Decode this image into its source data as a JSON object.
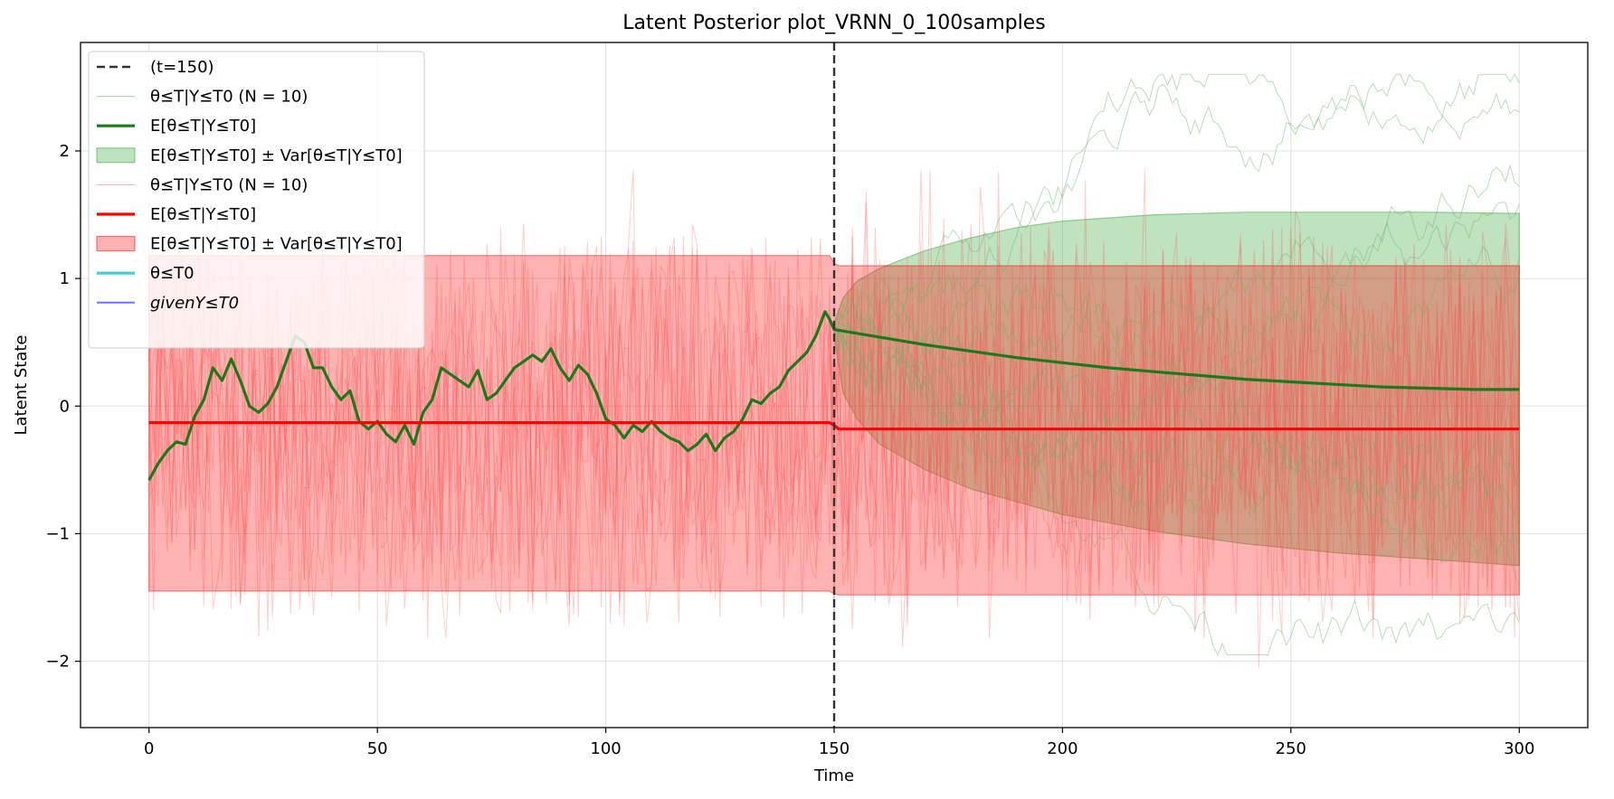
{
  "chart_data": {
    "type": "line",
    "title": "Latent Posterior plot_VRNN_0_100samples",
    "xlabel": "Time",
    "ylabel": "Latent State",
    "xlim": [
      -15,
      315
    ],
    "ylim": [
      -2.52,
      2.85
    ],
    "xticks": [
      0,
      50,
      100,
      150,
      200,
      250,
      300
    ],
    "yticks": [
      -2,
      -1,
      0,
      1,
      2
    ],
    "grid": true,
    "legend_position": "top-left",
    "vline": {
      "x": 150,
      "label": "(t=150)",
      "color": "#333333"
    },
    "legend": [
      {
        "label": "(t=150)",
        "style": "dashed",
        "color": "#333333"
      },
      {
        "label": "θ≤T|Y≤T0 (N = 10)",
        "style": "thin",
        "color": "#7bc47b"
      },
      {
        "label": "E[θ≤T|Y≤T0]",
        "style": "thick",
        "color": "#1a7a1a"
      },
      {
        "label": "E[θ≤T|Y≤T0] ± Var[θ≤T|Y≤T0]",
        "style": "patch",
        "color": "#2ca02c"
      },
      {
        "label": "θ≤T|Y≤T0 (N = 10)",
        "style": "thin",
        "color": "#ff8080"
      },
      {
        "label": "E[θ≤T|Y≤T0]",
        "style": "thick",
        "color": "#ff0000"
      },
      {
        "label": "E[θ≤T|Y≤T0] ± Var[θ≤T|Y≤T0]",
        "style": "patch",
        "color": "#ff0000"
      },
      {
        "label": "θ≤T0",
        "style": "thick",
        "color": "#40d0d0"
      },
      {
        "label": "givenY≤T0",
        "style": "medium",
        "color": "#7070ff"
      }
    ],
    "series": [
      {
        "name": "green mean E[θ≤T|Y≤T0]",
        "x": [
          0,
          2,
          4,
          6,
          8,
          10,
          12,
          14,
          16,
          18,
          20,
          22,
          24,
          26,
          28,
          30,
          32,
          34,
          36,
          38,
          40,
          42,
          44,
          46,
          48,
          50,
          52,
          54,
          56,
          58,
          60,
          62,
          64,
          66,
          68,
          70,
          72,
          74,
          76,
          78,
          80,
          82,
          84,
          86,
          88,
          90,
          92,
          94,
          96,
          98,
          100,
          102,
          104,
          106,
          108,
          110,
          112,
          114,
          116,
          118,
          120,
          122,
          124,
          126,
          128,
          130,
          132,
          134,
          136,
          138,
          140,
          142,
          144,
          146,
          148,
          149,
          150,
          160,
          170,
          180,
          190,
          200,
          210,
          220,
          230,
          240,
          250,
          260,
          270,
          280,
          290,
          300
        ],
        "values": [
          -0.58,
          -0.45,
          -0.35,
          -0.28,
          -0.3,
          -0.08,
          0.05,
          0.3,
          0.2,
          0.37,
          0.2,
          0.0,
          -0.05,
          0.02,
          0.15,
          0.35,
          0.55,
          0.5,
          0.3,
          0.3,
          0.15,
          0.05,
          0.12,
          -0.12,
          -0.18,
          -0.12,
          -0.22,
          -0.28,
          -0.15,
          -0.3,
          -0.05,
          0.05,
          0.3,
          0.25,
          0.2,
          0.15,
          0.28,
          0.05,
          0.1,
          0.2,
          0.3,
          0.35,
          0.4,
          0.35,
          0.45,
          0.3,
          0.2,
          0.32,
          0.25,
          0.1,
          -0.1,
          -0.15,
          -0.25,
          -0.15,
          -0.2,
          -0.12,
          -0.2,
          -0.25,
          -0.28,
          -0.35,
          -0.3,
          -0.22,
          -0.35,
          -0.25,
          -0.2,
          -0.1,
          0.05,
          0.02,
          0.1,
          0.15,
          0.28,
          0.35,
          0.42,
          0.55,
          0.74,
          0.68,
          0.6,
          0.54,
          0.48,
          0.43,
          0.38,
          0.34,
          0.3,
          0.27,
          0.24,
          0.21,
          0.19,
          0.17,
          0.15,
          0.14,
          0.13,
          0.13
        ],
        "color": "#1a7a1a"
      },
      {
        "name": "red mean E[θ≤T|Y≤T0]",
        "x": [
          0,
          149,
          150,
          151,
          300
        ],
        "values": [
          -0.13,
          -0.13,
          -0.15,
          -0.18,
          -0.18
        ],
        "color": "#ff0000"
      }
    ],
    "bands": [
      {
        "name": "green ± Var",
        "x": [
          150,
          152,
          155,
          160,
          170,
          180,
          190,
          200,
          220,
          240,
          260,
          280,
          300
        ],
        "lower": [
          0.55,
          0.1,
          -0.1,
          -0.3,
          -0.5,
          -0.65,
          -0.75,
          -0.85,
          -0.98,
          -1.08,
          -1.15,
          -1.2,
          -1.25
        ],
        "upper": [
          0.65,
          0.85,
          0.98,
          1.08,
          1.22,
          1.32,
          1.4,
          1.45,
          1.5,
          1.52,
          1.52,
          1.52,
          1.51
        ],
        "color": "#2ca02c"
      },
      {
        "name": "red ± Var",
        "x": [
          0,
          149,
          150,
          151,
          300
        ],
        "lower": [
          -1.45,
          -1.45,
          -1.47,
          -1.48,
          -1.48
        ],
        "upper": [
          1.18,
          1.18,
          1.12,
          1.1,
          1.1
        ],
        "color": "#ff0000"
      }
    ],
    "sample_lines": {
      "red": {
        "count": 10,
        "x_range": [
          0,
          300
        ],
        "amplitude_min": -2.25,
        "amplitude_max": 1.85,
        "color": "#ff4d4d"
      },
      "green": {
        "count": 10,
        "x_range": [
          150,
          300
        ],
        "start": 0.6,
        "max": 2.6,
        "min": -1.95,
        "color": "#66b266"
      }
    }
  }
}
